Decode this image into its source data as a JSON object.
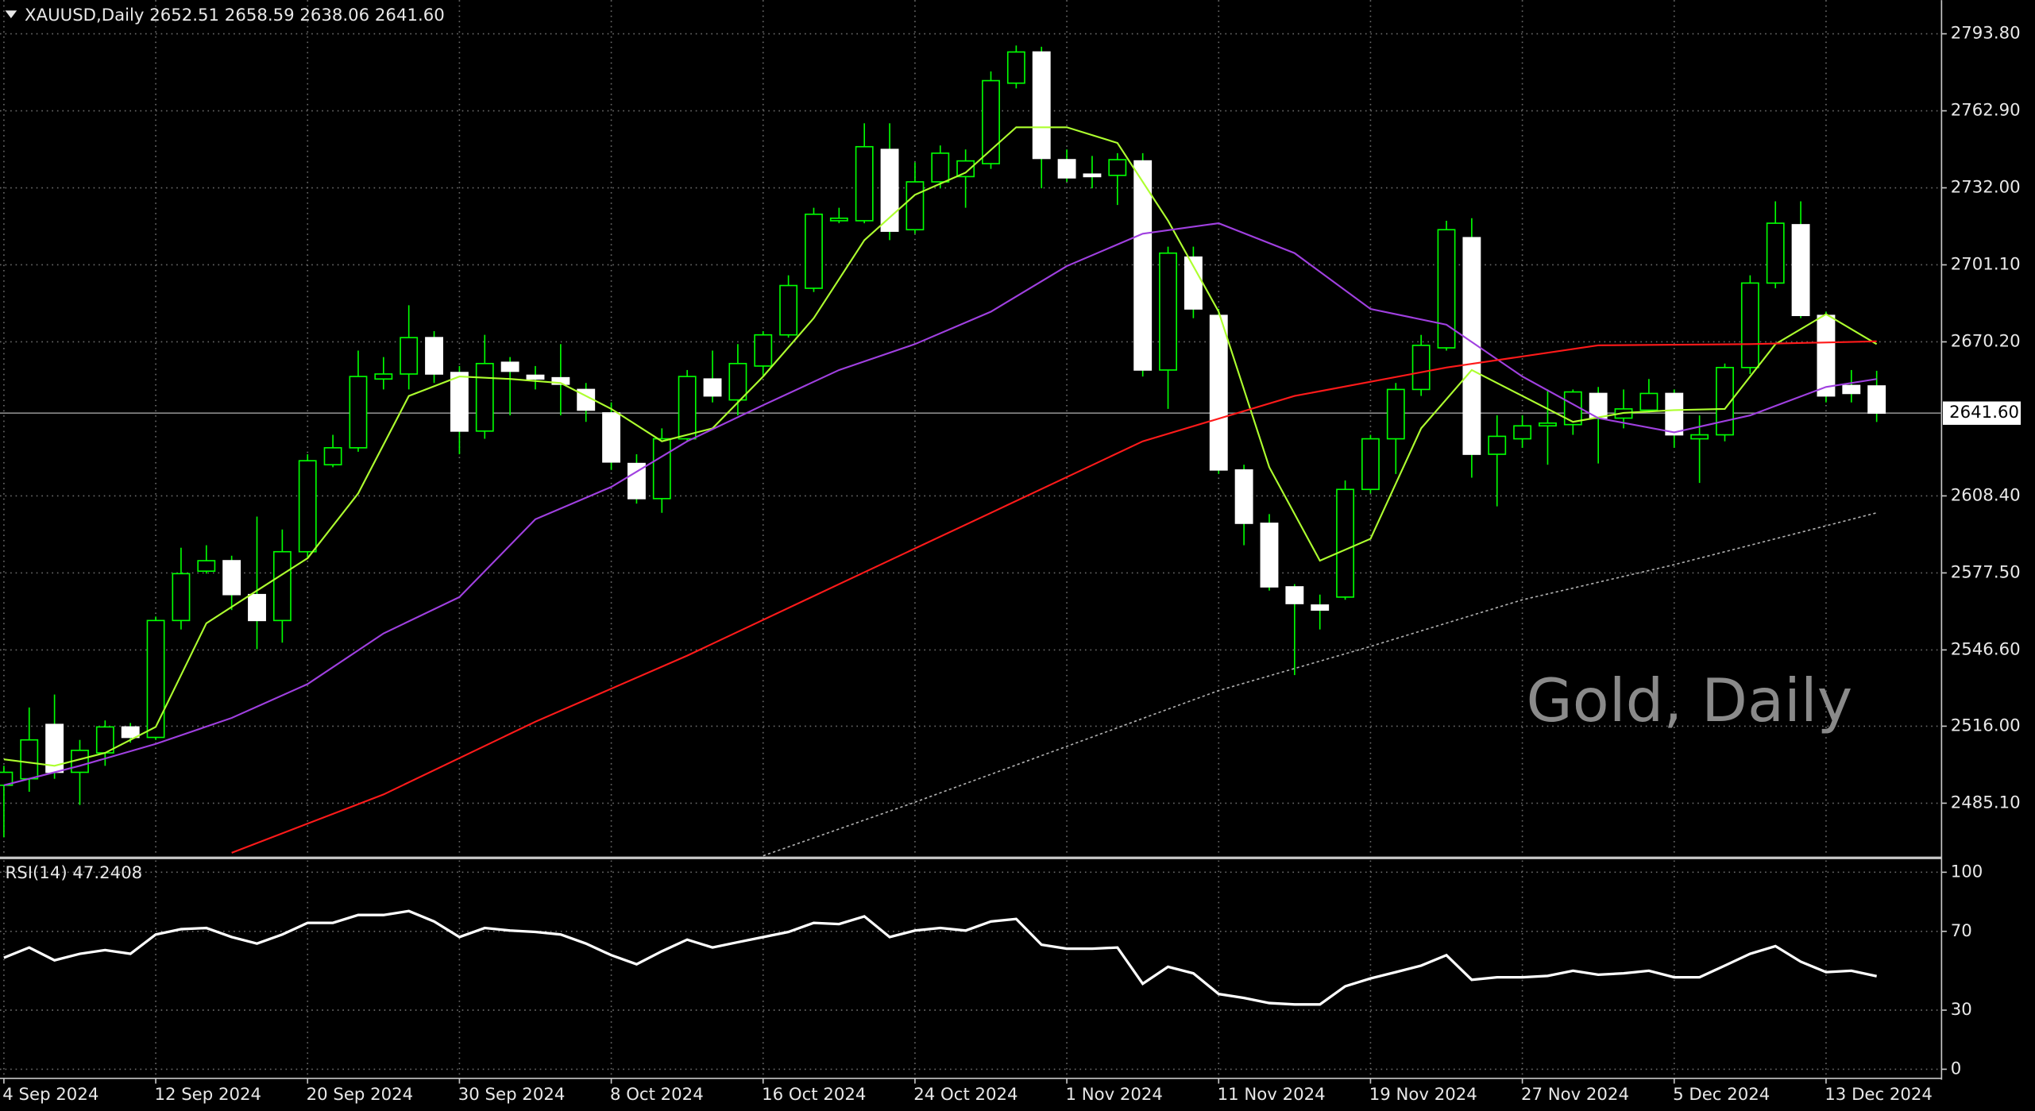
{
  "chart_data": [
    {
      "type": "candlestick",
      "title": "XAUUSD,Daily 2652.51 2658.59 2638.06 2641.60",
      "watermark": "Gold, Daily",
      "categories": [
        "4 Sep 2024",
        null,
        null,
        null,
        null,
        null,
        "12 Sep 2024",
        null,
        null,
        null,
        null,
        null,
        "20 Sep 2024",
        null,
        null,
        null,
        null,
        null,
        "30 Sep 2024",
        null,
        null,
        null,
        null,
        null,
        "8 Oct 2024",
        null,
        null,
        null,
        null,
        null,
        "16 Oct 2024",
        null,
        null,
        null,
        null,
        null,
        "24 Oct 2024",
        null,
        null,
        null,
        null,
        null,
        "1 Nov 2024",
        null,
        null,
        null,
        null,
        null,
        "11 Nov 2024",
        null,
        null,
        null,
        null,
        null,
        "19 Nov 2024",
        null,
        null,
        null,
        null,
        null,
        "27 Nov 2024",
        null,
        null,
        null,
        null,
        null,
        "5 Dec 2024",
        null,
        null,
        null,
        null,
        null,
        "13 Dec 2024",
        null,
        null
      ],
      "open": [
        2492.3,
        2494.9,
        2516.7,
        2497.5,
        2505.3,
        2515.7,
        2511.5,
        2558.4,
        2578.2,
        2582.4,
        2568.8,
        2558.4,
        2586.0,
        2620.9,
        2627.7,
        2655.3,
        2657.3,
        2671.9,
        2657.9,
        2634.4,
        2662.0,
        2656.8,
        2655.8,
        2651.1,
        2641.7,
        2621.4,
        2607.3,
        2631.3,
        2655.3,
        2646.9,
        2660.5,
        2673.0,
        2691.7,
        2718.8,
        2718.8,
        2747.4,
        2715.2,
        2734.4,
        2736.5,
        2741.7,
        2774.0,
        2786.5,
        2743.3,
        2737.5,
        2737.0,
        2742.8,
        2658.9,
        2704.2,
        2680.8,
        2618.8,
        2597.4,
        2571.9,
        2564.6,
        2567.8,
        2611.0,
        2631.3,
        2651.1,
        2667.8,
        2712.0,
        2625.1,
        2631.3,
        2636.5,
        2637.0,
        2649.5,
        2639.6,
        2642.8,
        2649.5,
        2631.3,
        2632.9,
        2659.9,
        2693.8,
        2717.2,
        2680.8,
        2652.7,
        2652.51
      ],
      "high": [
        2500.1,
        2523.5,
        2528.7,
        2510.5,
        2518.3,
        2517.3,
        2560.0,
        2587.6,
        2588.6,
        2584.4,
        2600.1,
        2594.9,
        2625.1,
        2632.9,
        2666.7,
        2664.1,
        2684.9,
        2674.5,
        2660.5,
        2673.0,
        2664.1,
        2660.5,
        2669.3,
        2653.7,
        2645.9,
        2625.1,
        2635.5,
        2658.9,
        2666.7,
        2669.3,
        2674.5,
        2696.9,
        2724.0,
        2724.0,
        2757.9,
        2757.9,
        2742.2,
        2749.0,
        2747.4,
        2778.7,
        2789.1,
        2788.6,
        2747.4,
        2744.8,
        2745.9,
        2745.9,
        2708.4,
        2708.4,
        2683.4,
        2620.9,
        2601.1,
        2573.0,
        2568.8,
        2614.6,
        2632.9,
        2653.7,
        2673.0,
        2718.8,
        2719.8,
        2640.7,
        2640.7,
        2651.1,
        2651.1,
        2652.1,
        2651.1,
        2655.3,
        2651.1,
        2640.7,
        2661.5,
        2696.9,
        2726.6,
        2726.6,
        2682.3,
        2658.9,
        2658.59
      ],
      "low": [
        2471.4,
        2489.7,
        2494.9,
        2484.4,
        2500.1,
        2509.4,
        2510.5,
        2554.8,
        2577.2,
        2562.6,
        2546.9,
        2549.5,
        2583.4,
        2619.9,
        2626.1,
        2651.1,
        2651.1,
        2653.7,
        2625.1,
        2631.3,
        2640.7,
        2651.1,
        2640.7,
        2638.1,
        2618.8,
        2605.3,
        2601.6,
        2630.3,
        2645.9,
        2640.7,
        2656.3,
        2671.9,
        2690.2,
        2717.8,
        2717.8,
        2711.0,
        2713.6,
        2731.8,
        2724.0,
        2739.6,
        2771.9,
        2731.8,
        2734.4,
        2731.8,
        2725.1,
        2656.3,
        2643.3,
        2679.7,
        2617.2,
        2588.6,
        2570.4,
        2536.5,
        2554.8,
        2566.7,
        2609.4,
        2617.2,
        2648.5,
        2666.7,
        2615.7,
        2604.2,
        2627.7,
        2620.9,
        2632.9,
        2621.4,
        2635.5,
        2641.7,
        2627.7,
        2613.6,
        2630.3,
        2657.3,
        2691.7,
        2679.7,
        2645.9,
        2645.9,
        2638.06
      ],
      "close": [
        2497.5,
        2510.5,
        2497.5,
        2506.3,
        2515.7,
        2511.5,
        2558.4,
        2577.2,
        2582.4,
        2568.8,
        2558.4,
        2586.0,
        2622.5,
        2627.7,
        2656.3,
        2657.3,
        2671.9,
        2657.3,
        2634.4,
        2661.5,
        2658.4,
        2655.3,
        2653.2,
        2642.8,
        2622.0,
        2607.3,
        2631.3,
        2656.3,
        2648.5,
        2661.5,
        2673.0,
        2692.8,
        2721.4,
        2719.8,
        2748.5,
        2714.6,
        2734.4,
        2745.9,
        2742.8,
        2775.0,
        2786.5,
        2743.8,
        2736.0,
        2736.5,
        2743.3,
        2658.9,
        2705.8,
        2683.4,
        2618.8,
        2597.4,
        2571.9,
        2565.2,
        2562.6,
        2611.0,
        2631.3,
        2651.1,
        2668.8,
        2715.2,
        2625.1,
        2632.3,
        2636.5,
        2637.6,
        2650.1,
        2639.6,
        2643.3,
        2649.5,
        2632.9,
        2632.9,
        2659.9,
        2693.8,
        2717.8,
        2680.8,
        2648.5,
        2649.5,
        2641.6
      ],
      "up_color": "#00ff00",
      "down_color": "#ffffff",
      "lines": [
        {
          "color": "#adff2f",
          "dash": false,
          "x": [
            0,
            2,
            4,
            6,
            8,
            10,
            12,
            14,
            16,
            18,
            20,
            22,
            24,
            26,
            28,
            30,
            32,
            34,
            36,
            38,
            40,
            42,
            44,
            46,
            48,
            50,
            52,
            54,
            56,
            58,
            60,
            62,
            64,
            66,
            68,
            70,
            72,
            74
          ],
          "values": [
            2502.7,
            2500.1,
            2505.3,
            2515.7,
            2557.3,
            2570.4,
            2583.4,
            2609.4,
            2648.5,
            2656.3,
            2655.3,
            2653.7,
            2643.3,
            2630.3,
            2635.5,
            2656.3,
            2679.7,
            2711.0,
            2729.2,
            2738.1,
            2756.3,
            2756.3,
            2750.0,
            2718.8,
            2682.3,
            2619.9,
            2582.4,
            2591.2,
            2635.5,
            2658.9,
            2648.5,
            2638.1,
            2641.7,
            2642.8,
            2643.3,
            2669.3,
            2681.3,
            2669.3
          ]
        },
        {
          "color": "#a040e0",
          "dash": false,
          "x": [
            0,
            3,
            6,
            9,
            12,
            15,
            18,
            21,
            24,
            27,
            30,
            33,
            36,
            39,
            42,
            45,
            48,
            51,
            54,
            57,
            60,
            63,
            66,
            69,
            72,
            74
          ],
          "values": [
            2492.3,
            2500.1,
            2508.9,
            2519.3,
            2532.9,
            2553.2,
            2567.8,
            2599.0,
            2612.0,
            2630.3,
            2644.8,
            2658.9,
            2669.3,
            2682.3,
            2700.6,
            2713.6,
            2717.8,
            2705.8,
            2683.4,
            2677.1,
            2656.3,
            2639.6,
            2633.9,
            2640.7,
            2652.1,
            2655.3
          ]
        },
        {
          "color": "#ff1a1a",
          "dash": false,
          "x": [
            9,
            15,
            21,
            27,
            33,
            39,
            45,
            51,
            57,
            63,
            69,
            74
          ],
          "values": [
            2465.2,
            2488.6,
            2517.8,
            2544.3,
            2573.0,
            2601.6,
            2630.3,
            2648.5,
            2659.9,
            2668.8,
            2669.3,
            2670.4
          ]
        },
        {
          "color": "#b0b0b0",
          "dash": true,
          "x": [
            30,
            36,
            42,
            48,
            54,
            60,
            66,
            72,
            74
          ],
          "values": [
            2464.0,
            2485.5,
            2507.9,
            2530.3,
            2548.0,
            2566.7,
            2580.8,
            2596.4,
            2601.6
          ]
        }
      ],
      "last_price": {
        "value": 2641.6,
        "label": "2641.60"
      },
      "ylim": [
        2463.7,
        2804.7
      ],
      "yticks": [
        {
          "value": 2793.8,
          "label": "2793.80"
        },
        {
          "value": 2762.9,
          "label": "2762.90"
        },
        {
          "value": 2732,
          "label": "2732.00"
        },
        {
          "value": 2701.1,
          "label": "2701.10"
        },
        {
          "value": 2670.2,
          "label": "2670.20"
        },
        {
          "value": 2608.4,
          "label": "2608.40"
        },
        {
          "value": 2577.5,
          "label": "2577.50"
        },
        {
          "value": 2546.6,
          "label": "2546.60"
        },
        {
          "value": 2516,
          "label": "2516.00"
        },
        {
          "value": 2485.1,
          "label": "2485.10"
        }
      ],
      "grid": true
    },
    {
      "type": "line",
      "title": "RSI(14) 47.2408",
      "values": [
        56.6,
        61.8,
        55.3,
        58.6,
        60.5,
        58.6,
        68.4,
        71.1,
        71.7,
        67.1,
        63.8,
        68.4,
        74.3,
        74.3,
        78.3,
        78.3,
        80.3,
        75.0,
        67.1,
        71.7,
        70.4,
        69.7,
        68.4,
        63.8,
        57.9,
        53.3,
        59.9,
        65.8,
        61.8,
        64.5,
        67.1,
        69.7,
        74.3,
        73.7,
        77.6,
        67.1,
        70.4,
        71.7,
        70.4,
        75.0,
        76.3,
        63.2,
        61.2,
        61.2,
        61.8,
        43.4,
        52.0,
        48.7,
        38.2,
        36.2,
        33.6,
        32.9,
        32.9,
        42.1,
        46.1,
        49.3,
        52.6,
        57.9,
        45.4,
        46.7,
        46.7,
        47.4,
        50.0,
        48.0,
        48.7,
        50.0,
        46.7,
        46.7,
        52.6,
        58.6,
        62.5,
        54.6,
        49.3,
        50.0,
        47.2408
      ],
      "color": "#ffffff",
      "ylim": [
        -4,
        106
      ],
      "yticks": [
        100,
        70,
        30,
        0
      ],
      "grid": true
    }
  ]
}
